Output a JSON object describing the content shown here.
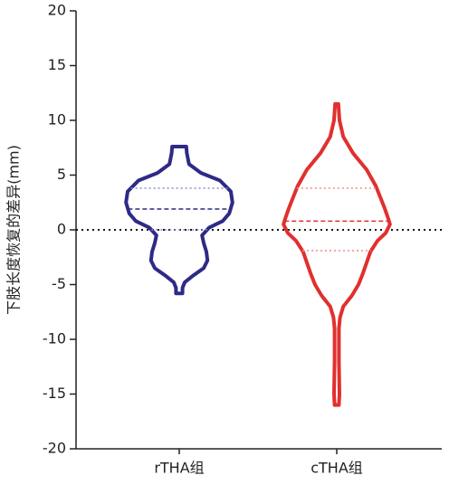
{
  "chart_data": {
    "type": "violin",
    "y_label": "下肢长度恢复的差异(mm)",
    "categories": [
      "rTHA组",
      "cTHA组"
    ],
    "ylim": [
      -20,
      20
    ],
    "yticks": [
      -20,
      -15,
      -10,
      -5,
      0,
      5,
      10,
      15,
      20
    ],
    "reference_line": 0,
    "series": [
      {
        "name": "rTHA组",
        "color": "#2e2a86",
        "quartile_color": "#8d8ad0",
        "median": 1.9,
        "q1": 0,
        "q3": 3.8,
        "profile_y": [
          7.6,
          7.0,
          6.0,
          5.2,
          4.5,
          3.5,
          2.5,
          1.5,
          0.8,
          0.2,
          -0.5,
          -1.2,
          -2.0,
          -2.8,
          -3.5,
          -4.2,
          -4.8,
          -5.3,
          -5.8
        ],
        "profile_width": [
          0.13,
          0.14,
          0.18,
          0.4,
          0.75,
          0.95,
          0.98,
          0.92,
          0.8,
          0.55,
          0.42,
          0.45,
          0.5,
          0.52,
          0.45,
          0.25,
          0.1,
          0.06,
          0.06
        ]
      },
      {
        "name": "cTHA组",
        "color": "#e0302e",
        "quartile_color": "#f08a8a",
        "median": 0.8,
        "q1": -1.9,
        "q3": 3.8,
        "profile_y": [
          11.5,
          10,
          8.5,
          7,
          5.5,
          4,
          3,
          2,
          1,
          0.5,
          -0.3,
          -1,
          -2,
          -3,
          -4,
          -5,
          -6,
          -7,
          -8,
          -9,
          -12,
          -15,
          -16
        ],
        "profile_width": [
          0.03,
          0.05,
          0.12,
          0.3,
          0.55,
          0.72,
          0.8,
          0.88,
          0.95,
          0.98,
          0.9,
          0.75,
          0.62,
          0.55,
          0.48,
          0.4,
          0.28,
          0.12,
          0.06,
          0.04,
          0.04,
          0.05,
          0.04
        ]
      }
    ]
  }
}
